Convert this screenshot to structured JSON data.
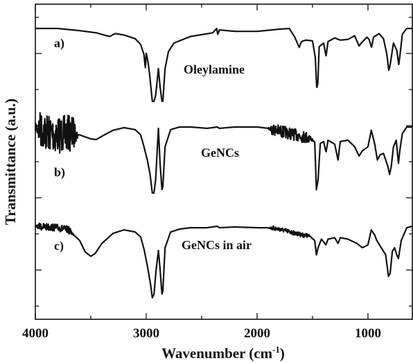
{
  "chart_data": {
    "type": "line",
    "xlabel": "Wavenumber (cm",
    "xlabel_sup": "-1",
    "xlabel_end": ")",
    "ylabel": "Transmittance (a.u.)",
    "xlim": [
      4000,
      600
    ],
    "x_reversed": true,
    "xticks": [
      4000,
      3000,
      2000,
      1000
    ],
    "grid": false,
    "legend": "none",
    "series": [
      {
        "name": "Oleylamine",
        "tag": "a)",
        "points": [
          [
            4000,
            0.0
          ],
          [
            3800,
            0.0
          ],
          [
            3600,
            0.03
          ],
          [
            3450,
            0.06
          ],
          [
            3380,
            0.09
          ],
          [
            3330,
            0.11
          ],
          [
            3280,
            0.07
          ],
          [
            3200,
            0.09
          ],
          [
            3100,
            0.14
          ],
          [
            3050,
            0.22
          ],
          [
            3020,
            0.36
          ],
          [
            3008,
            0.55
          ],
          [
            3000,
            0.34
          ],
          [
            2985,
            0.45
          ],
          [
            2970,
            0.62
          ],
          [
            2945,
            1.0
          ],
          [
            2930,
            1.0
          ],
          [
            2915,
            0.92
          ],
          [
            2890,
            0.55
          ],
          [
            2875,
            0.8
          ],
          [
            2858,
            1.0
          ],
          [
            2850,
            1.0
          ],
          [
            2830,
            0.55
          ],
          [
            2800,
            0.32
          ],
          [
            2750,
            0.2
          ],
          [
            2600,
            0.11
          ],
          [
            2400,
            0.06
          ],
          [
            2365,
            0.0
          ],
          [
            2355,
            0.08
          ],
          [
            2340,
            0.02
          ],
          [
            2200,
            0.04
          ],
          [
            2000,
            0.04
          ],
          [
            1800,
            0.01
          ],
          [
            1710,
            0.0
          ],
          [
            1660,
            0.12
          ],
          [
            1620,
            0.26
          ],
          [
            1600,
            0.18
          ],
          [
            1560,
            0.16
          ],
          [
            1500,
            0.17
          ],
          [
            1475,
            0.4
          ],
          [
            1462,
            0.82
          ],
          [
            1452,
            0.75
          ],
          [
            1440,
            0.25
          ],
          [
            1400,
            0.2
          ],
          [
            1378,
            0.38
          ],
          [
            1360,
            0.18
          ],
          [
            1300,
            0.13
          ],
          [
            1250,
            0.16
          ],
          [
            1180,
            0.15
          ],
          [
            1120,
            0.1
          ],
          [
            1080,
            0.24
          ],
          [
            1060,
            0.2
          ],
          [
            1010,
            0.12
          ],
          [
            990,
            0.15
          ],
          [
            968,
            0.26
          ],
          [
            950,
            0.12
          ],
          [
            900,
            0.07
          ],
          [
            860,
            0.14
          ],
          [
            830,
            0.35
          ],
          [
            812,
            0.58
          ],
          [
            800,
            0.5
          ],
          [
            770,
            0.2
          ],
          [
            740,
            0.3
          ],
          [
            722,
            0.5
          ],
          [
            710,
            0.35
          ],
          [
            690,
            0.08
          ],
          [
            650,
            0.0
          ],
          [
            600,
            0.0
          ]
        ]
      },
      {
        "name": "GeNCs",
        "tag": "b)",
        "points": [
          [
            4000,
            0.0
          ],
          [
            3900,
            0.08
          ],
          [
            3800,
            0.12
          ],
          [
            3700,
            0.1
          ],
          [
            3600,
            0.12
          ],
          [
            3500,
            0.18
          ],
          [
            3450,
            0.19
          ],
          [
            3400,
            0.14
          ],
          [
            3300,
            0.05
          ],
          [
            3200,
            0.01
          ],
          [
            3100,
            0.04
          ],
          [
            3050,
            0.12
          ],
          [
            3020,
            0.3
          ],
          [
            2990,
            0.5
          ],
          [
            2965,
            0.72
          ],
          [
            2945,
            1.0
          ],
          [
            2930,
            1.0
          ],
          [
            2915,
            0.8
          ],
          [
            2890,
            0.02
          ],
          [
            2875,
            0.55
          ],
          [
            2858,
            0.95
          ],
          [
            2850,
            0.9
          ],
          [
            2830,
            0.3
          ],
          [
            2780,
            0.04
          ],
          [
            2700,
            0.0
          ],
          [
            2600,
            0.0
          ],
          [
            2450,
            0.02
          ],
          [
            2360,
            0.0
          ],
          [
            2340,
            0.02
          ],
          [
            2200,
            0.0
          ],
          [
            2000,
            0.0
          ],
          [
            1900,
            0.02
          ],
          [
            1800,
            0.06
          ],
          [
            1700,
            0.1
          ],
          [
            1600,
            0.14
          ],
          [
            1520,
            0.17
          ],
          [
            1480,
            0.23
          ],
          [
            1465,
            0.95
          ],
          [
            1450,
            0.8
          ],
          [
            1430,
            0.25
          ],
          [
            1400,
            0.22
          ],
          [
            1378,
            0.38
          ],
          [
            1360,
            0.2
          ],
          [
            1300,
            0.26
          ],
          [
            1270,
            0.5
          ],
          [
            1250,
            0.22
          ],
          [
            1180,
            0.2
          ],
          [
            1120,
            0.3
          ],
          [
            1080,
            0.44
          ],
          [
            1050,
            0.36
          ],
          [
            1000,
            0.3
          ],
          [
            970,
            0.05
          ],
          [
            940,
            0.25
          ],
          [
            915,
            0.5
          ],
          [
            890,
            0.42
          ],
          [
            860,
            0.4
          ],
          [
            820,
            0.6
          ],
          [
            805,
            0.72
          ],
          [
            790,
            0.6
          ],
          [
            770,
            0.3
          ],
          [
            745,
            0.2
          ],
          [
            725,
            0.55
          ],
          [
            712,
            0.35
          ],
          [
            690,
            0.1
          ],
          [
            650,
            0.0
          ],
          [
            600,
            0.0
          ]
        ]
      },
      {
        "name": "GeNCs in air",
        "tag": "c)",
        "points": [
          [
            4000,
            0.0
          ],
          [
            3800,
            0.02
          ],
          [
            3700,
            0.05
          ],
          [
            3600,
            0.2
          ],
          [
            3550,
            0.36
          ],
          [
            3500,
            0.42
          ],
          [
            3460,
            0.38
          ],
          [
            3400,
            0.24
          ],
          [
            3300,
            0.1
          ],
          [
            3200,
            0.05
          ],
          [
            3100,
            0.08
          ],
          [
            3050,
            0.15
          ],
          [
            3020,
            0.32
          ],
          [
            2990,
            0.55
          ],
          [
            2960,
            0.82
          ],
          [
            2945,
            1.0
          ],
          [
            2930,
            0.95
          ],
          [
            2910,
            0.6
          ],
          [
            2890,
            0.34
          ],
          [
            2875,
            0.6
          ],
          [
            2858,
            0.95
          ],
          [
            2850,
            0.9
          ],
          [
            2830,
            0.3
          ],
          [
            2780,
            0.08
          ],
          [
            2700,
            0.04
          ],
          [
            2600,
            0.02
          ],
          [
            2450,
            0.02
          ],
          [
            2360,
            0.0
          ],
          [
            2340,
            0.02
          ],
          [
            2200,
            0.01
          ],
          [
            2000,
            0.02
          ],
          [
            1900,
            0.02
          ],
          [
            1800,
            0.04
          ],
          [
            1700,
            0.08
          ],
          [
            1600,
            0.12
          ],
          [
            1520,
            0.14
          ],
          [
            1480,
            0.2
          ],
          [
            1465,
            0.4
          ],
          [
            1450,
            0.3
          ],
          [
            1420,
            0.18
          ],
          [
            1380,
            0.26
          ],
          [
            1360,
            0.18
          ],
          [
            1300,
            0.16
          ],
          [
            1270,
            0.24
          ],
          [
            1250,
            0.16
          ],
          [
            1180,
            0.18
          ],
          [
            1100,
            0.24
          ],
          [
            1050,
            0.3
          ],
          [
            1000,
            0.26
          ],
          [
            970,
            0.05
          ],
          [
            940,
            0.12
          ],
          [
            920,
            0.2
          ],
          [
            880,
            0.3
          ],
          [
            840,
            0.4
          ],
          [
            815,
            0.7
          ],
          [
            800,
            0.66
          ],
          [
            780,
            0.35
          ],
          [
            760,
            0.3
          ],
          [
            740,
            0.4
          ],
          [
            725,
            0.45
          ],
          [
            700,
            0.2
          ],
          [
            650,
            0.02
          ],
          [
            600,
            0.0
          ]
        ]
      }
    ],
    "noise": [
      {
        "series": 1,
        "from": 4000,
        "to": 3620,
        "amplitude": 0.28
      },
      {
        "series": 1,
        "from": 1900,
        "to": 1500,
        "amplitude": 0.09
      },
      {
        "series": 2,
        "from": 4000,
        "to": 3650,
        "amplitude": 0.05
      },
      {
        "series": 2,
        "from": 1900,
        "to": 1500,
        "amplitude": 0.03
      }
    ]
  }
}
